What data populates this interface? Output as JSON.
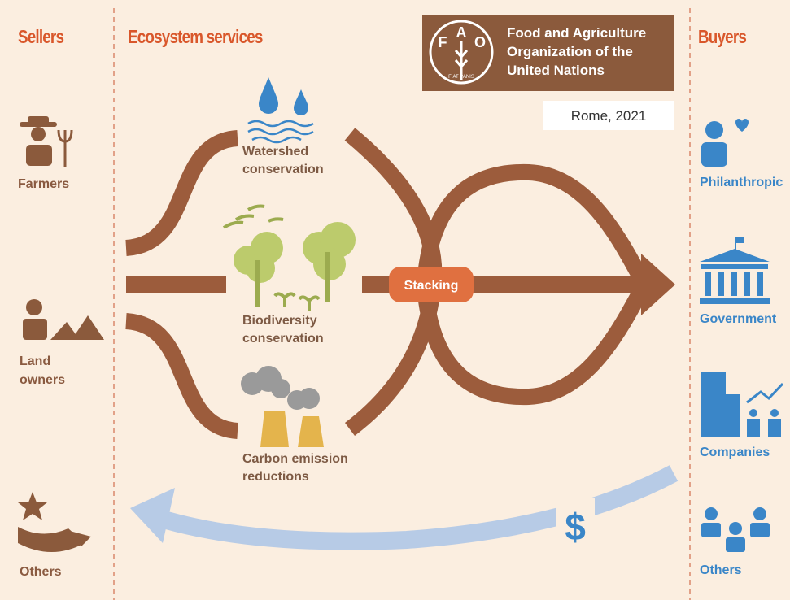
{
  "headings": {
    "sellers": "Sellers",
    "services": "Ecosystem services",
    "buyers": "Buyers"
  },
  "logo": {
    "letters": [
      "F",
      "A",
      "O"
    ],
    "motto": "FIAT PANIS",
    "name": "Food and Agriculture Organization of the United Nations"
  },
  "place_date": "Rome, 2021",
  "sellers": [
    "Farmers",
    "Land owners",
    "Others"
  ],
  "services": [
    "Watershed conservation",
    "Biodiversity conservation",
    "Carbon emission reductions"
  ],
  "stacking": "Stacking",
  "buyers": [
    "Philanthropic",
    "Government",
    "Companies",
    "Others"
  ],
  "payment": "$"
}
